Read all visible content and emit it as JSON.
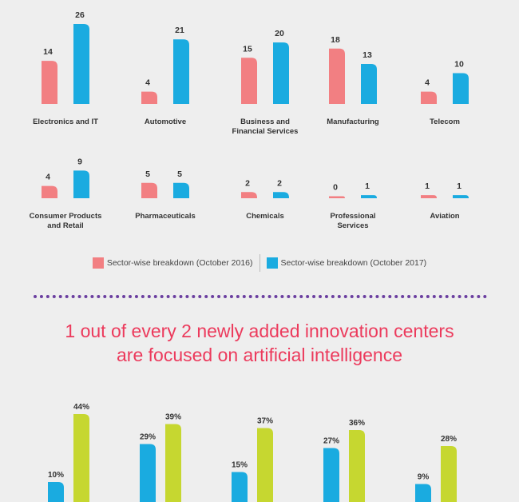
{
  "colors": {
    "series_2016": "#f27f82",
    "series_2017": "#1aabe0",
    "bottom_blue": "#1aabe0",
    "bottom_green": "#c6d730",
    "divider": "#6b3fa0",
    "headline": "#ec3a5c",
    "background": "#eeeeee"
  },
  "legend": {
    "item_2016": "Sector-wise breakdown (October 2016)",
    "item_2017": "Sector-wise breakdown (October 2017)"
  },
  "headline": {
    "line1": "1 out of every 2 newly added innovation centers",
    "line2": "are focused on artificial intelligence"
  },
  "chart_data": [
    {
      "type": "bar",
      "categories": [
        [
          "Electronics and IT"
        ],
        [
          "Automotive"
        ],
        [
          "Business and",
          "Financial Services"
        ],
        [
          "Manufacturing"
        ],
        [
          "Telecom"
        ],
        [
          "Consumer Products",
          "and Retail"
        ],
        [
          "Pharmaceuticals"
        ],
        [
          "Chemicals"
        ],
        [
          "Professional",
          "Services"
        ],
        [
          "Aviation"
        ]
      ],
      "series": [
        {
          "name": "Sector-wise breakdown (October 2016)",
          "values": [
            14,
            4,
            15,
            18,
            4,
            4,
            5,
            2,
            0,
            1
          ]
        },
        {
          "name": "Sector-wise breakdown (October 2017)",
          "values": [
            26,
            21,
            20,
            13,
            10,
            9,
            5,
            2,
            1,
            1
          ]
        }
      ],
      "ylim": [
        0,
        26
      ],
      "legend": "bottom-center",
      "grid": false
    },
    {
      "type": "bar",
      "categories": [
        "",
        "",
        "",
        "",
        ""
      ],
      "series": [
        {
          "values": [
            "10%",
            "29%",
            "15%",
            "27%",
            "9%"
          ]
        },
        {
          "values": [
            "44%",
            "39%",
            "37%",
            "36%",
            "28%"
          ]
        }
      ],
      "ylim": [
        0,
        44
      ],
      "grid": false
    }
  ]
}
